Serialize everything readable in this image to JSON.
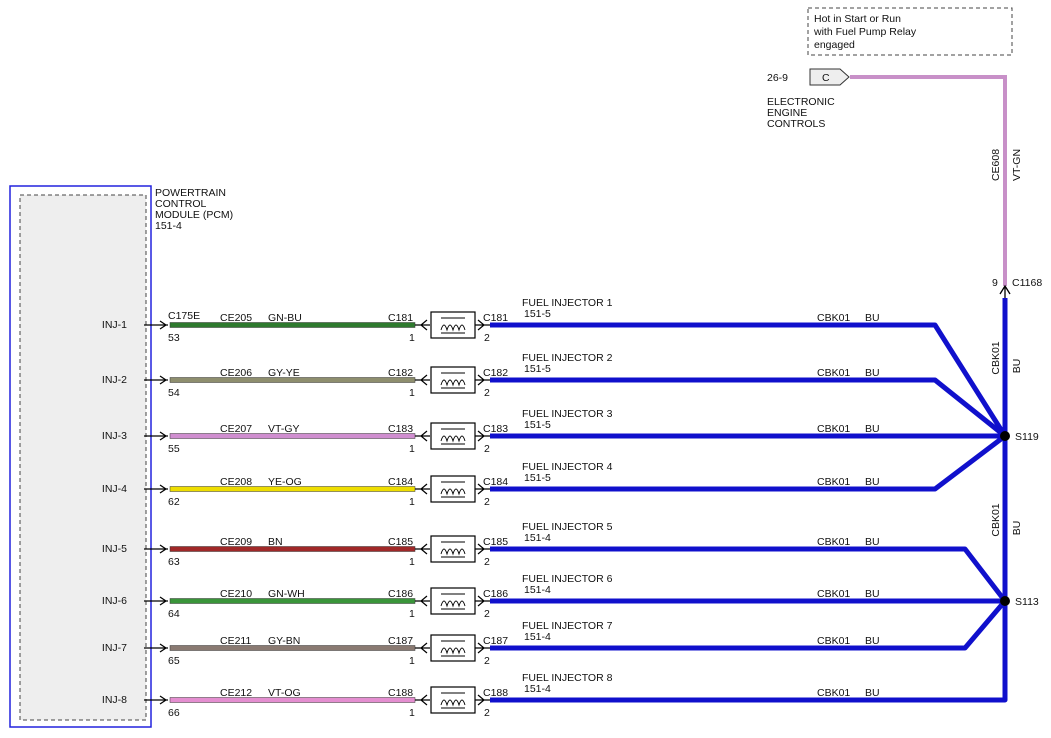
{
  "note": {
    "lines": [
      "Hot in Start or Run",
      "with Fuel Pump Relay",
      "engaged"
    ]
  },
  "power_source": {
    "ref": "26-9",
    "pin": "C",
    "lines": [
      "ELECTRONIC",
      "ENGINE",
      "CONTROLS"
    ]
  },
  "feed_wire": {
    "circuit": "CE608",
    "color_code": "VT-GN",
    "color": "#c890c8",
    "pin": "9",
    "connector": "C1168"
  },
  "pcm": {
    "lines": [
      "POWERTRAIN",
      "CONTROL",
      "MODULE (PCM)",
      "151-4"
    ],
    "connector": "C175E"
  },
  "injectors": [
    {
      "pin_name": "INJ-1",
      "pcm_pin": "53",
      "circuit": "CE205",
      "color_code": "GN-BU",
      "color": "#2e7a2e",
      "connector_a": "C181",
      "pin_a": "1",
      "connector_b": "C181",
      "pin_b": "2",
      "name": "FUEL INJECTOR 1",
      "ref": "151-5",
      "return_circuit": "CBK01",
      "return_color": "BU"
    },
    {
      "pin_name": "INJ-2",
      "pcm_pin": "54",
      "circuit": "CE206",
      "color_code": "GY-YE",
      "color": "#8e8e6e",
      "connector_a": "C182",
      "pin_a": "1",
      "connector_b": "C182",
      "pin_b": "2",
      "name": "FUEL INJECTOR 2",
      "ref": "151-5",
      "return_circuit": "CBK01",
      "return_color": "BU"
    },
    {
      "pin_name": "INJ-3",
      "pcm_pin": "55",
      "circuit": "CE207",
      "color_code": "VT-GY",
      "color": "#d08ed0",
      "connector_a": "C183",
      "pin_a": "1",
      "connector_b": "C183",
      "pin_b": "2",
      "name": "FUEL INJECTOR 3",
      "ref": "151-5",
      "return_circuit": "CBK01",
      "return_color": "BU"
    },
    {
      "pin_name": "INJ-4",
      "pcm_pin": "62",
      "circuit": "CE208",
      "color_code": "YE-OG",
      "color": "#eedd00",
      "connector_a": "C184",
      "pin_a": "1",
      "connector_b": "C184",
      "pin_b": "2",
      "name": "FUEL INJECTOR 4",
      "ref": "151-5",
      "return_circuit": "CBK01",
      "return_color": "BU"
    },
    {
      "pin_name": "INJ-5",
      "pcm_pin": "63",
      "circuit": "CE209",
      "color_code": "BN",
      "color": "#a02828",
      "connector_a": "C185",
      "pin_a": "1",
      "connector_b": "C185",
      "pin_b": "2",
      "name": "FUEL INJECTOR 5",
      "ref": "151-4",
      "return_circuit": "CBK01",
      "return_color": "BU"
    },
    {
      "pin_name": "INJ-6",
      "pcm_pin": "64",
      "circuit": "CE210",
      "color_code": "GN-WH",
      "color": "#3a953a",
      "connector_a": "C186",
      "pin_a": "1",
      "connector_b": "C186",
      "pin_b": "2",
      "name": "FUEL INJECTOR 6",
      "ref": "151-4",
      "return_circuit": "CBK01",
      "return_color": "BU"
    },
    {
      "pin_name": "INJ-7",
      "pcm_pin": "65",
      "circuit": "CE211",
      "color_code": "GY-BN",
      "color": "#8a7a72",
      "connector_a": "C187",
      "pin_a": "1",
      "connector_b": "C187",
      "pin_b": "2",
      "name": "FUEL INJECTOR 7",
      "ref": "151-4",
      "return_circuit": "CBK01",
      "return_color": "BU"
    },
    {
      "pin_name": "INJ-8",
      "pcm_pin": "66",
      "circuit": "CE212",
      "color_code": "VT-OG",
      "color": "#e48ed0",
      "connector_a": "C188",
      "pin_a": "1",
      "connector_b": "C188",
      "pin_b": "2",
      "name": "FUEL INJECTOR 8",
      "ref": "151-4",
      "return_circuit": "CBK01",
      "return_color": "BU"
    }
  ],
  "splices": [
    {
      "label": "S119",
      "circuit": "CBK01",
      "color_code": "BU"
    },
    {
      "label": "S113",
      "circuit": "CBK01",
      "color_code": "BU"
    }
  ]
}
